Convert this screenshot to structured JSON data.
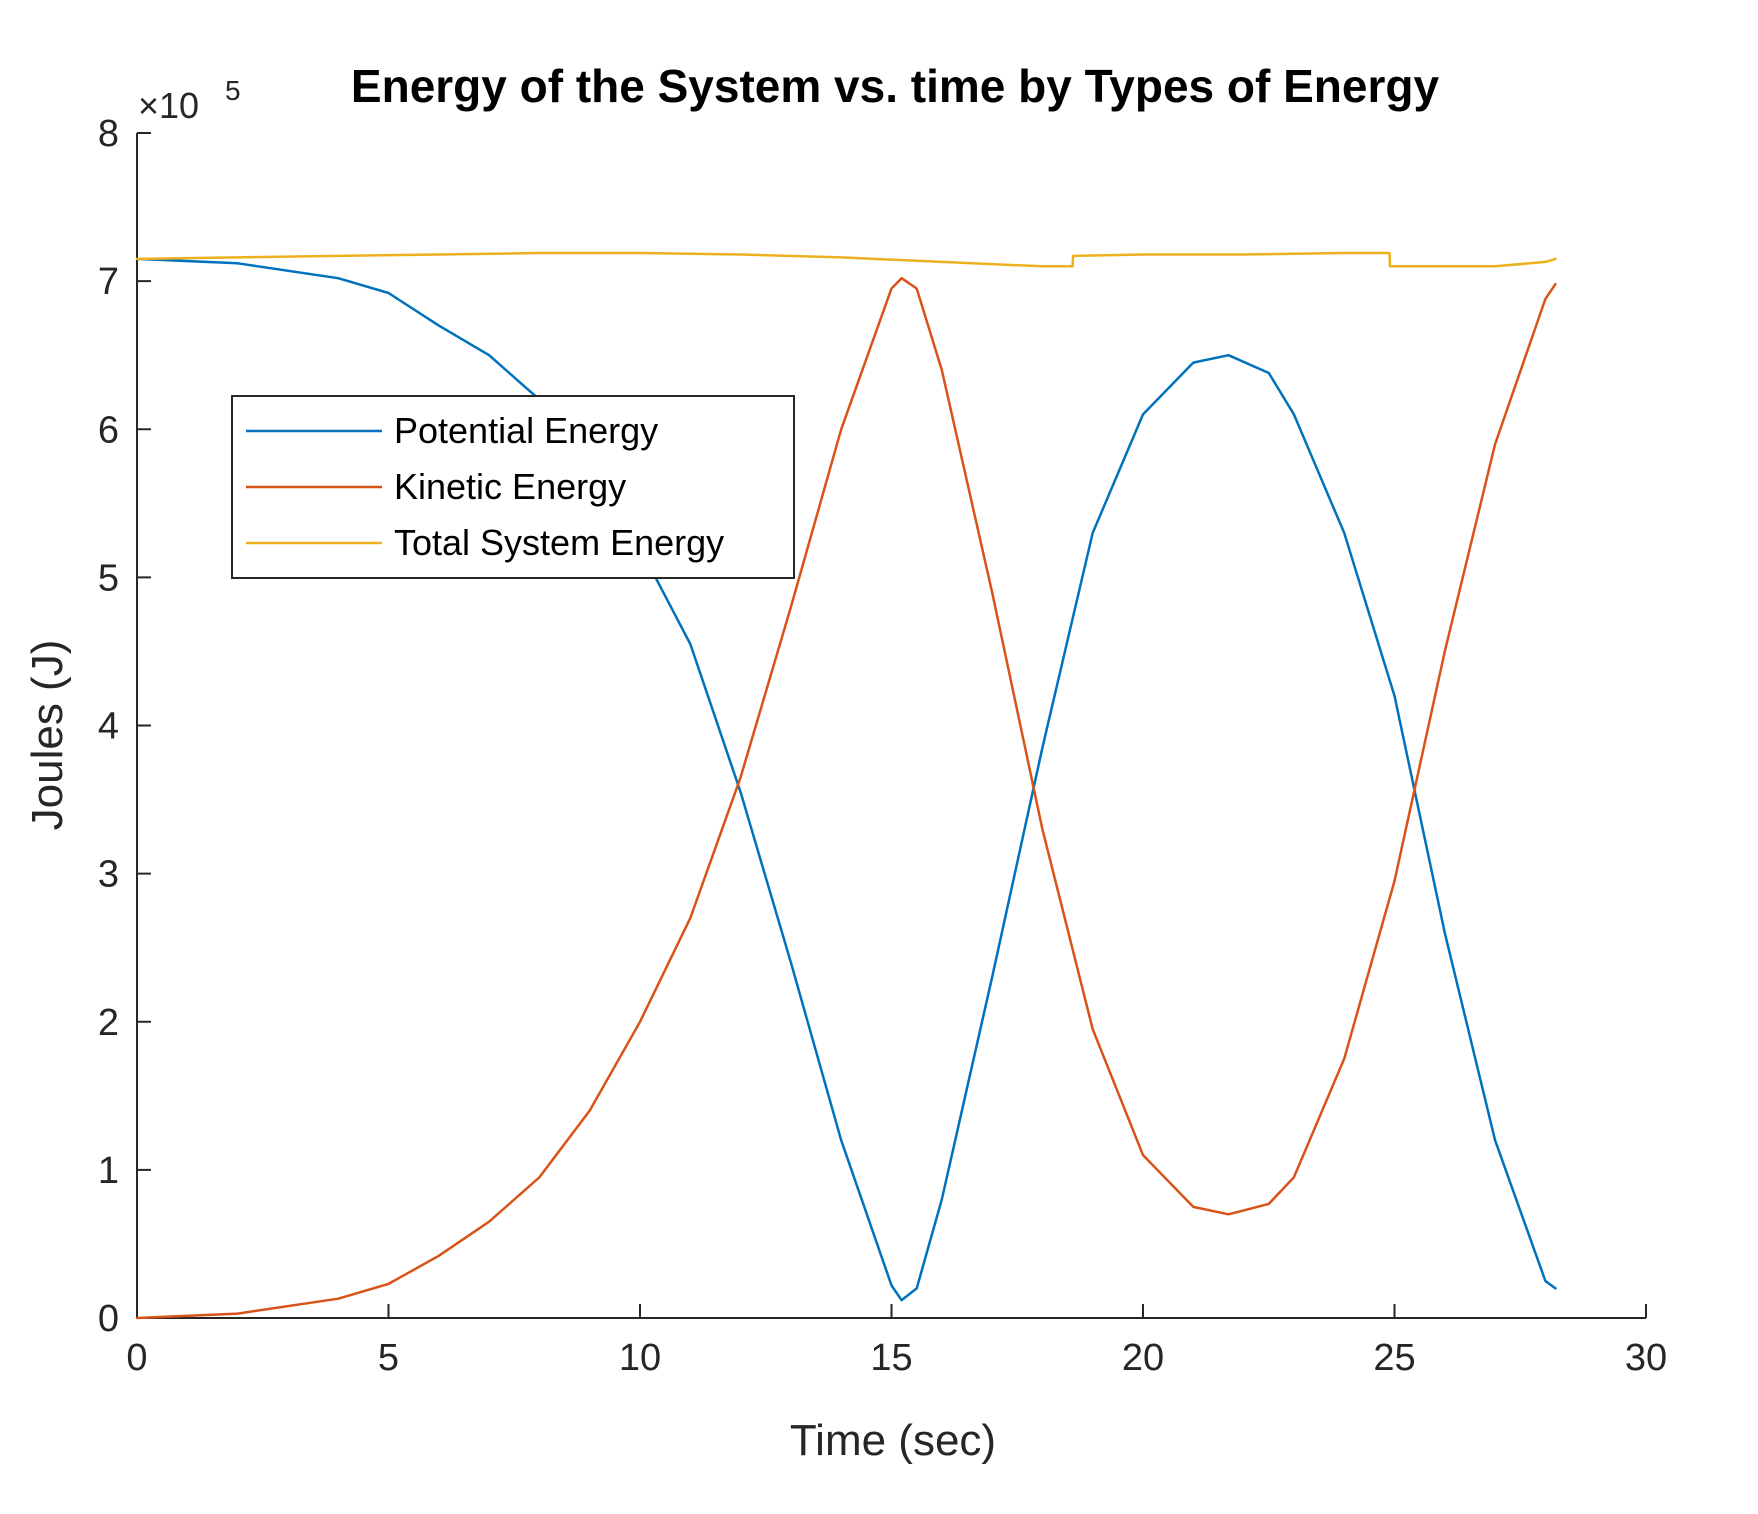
{
  "chart_data": {
    "type": "line",
    "title": "Energy of the System vs. time by Types of Energy",
    "xlabel": "Time (sec)",
    "ylabel": "Joules (J)",
    "xlim": [
      0,
      30
    ],
    "ylim": [
      0,
      8
    ],
    "y_multiplier_label": "×10",
    "y_multiplier_exponent": "5",
    "xticks": [
      0,
      5,
      10,
      15,
      20,
      25,
      30
    ],
    "yticks": [
      0,
      1,
      2,
      3,
      4,
      5,
      6,
      7,
      8
    ],
    "grid": false,
    "legend_position": "upper-left",
    "series": [
      {
        "name": "Potential Energy",
        "color": "#0072BD",
        "x": [
          0,
          2,
          4,
          5,
          6,
          7,
          8,
          9,
          10,
          11,
          12,
          13,
          14,
          15,
          15.2,
          15.5,
          16,
          17,
          18,
          19,
          20,
          21,
          21.7,
          22.5,
          23,
          24,
          25,
          26,
          27,
          28,
          28.2
        ],
        "y": [
          7.15,
          7.12,
          7.02,
          6.92,
          6.7,
          6.5,
          6.2,
          5.8,
          5.2,
          4.55,
          3.55,
          2.4,
          1.2,
          0.22,
          0.12,
          0.2,
          0.8,
          2.3,
          3.85,
          5.3,
          6.1,
          6.45,
          6.5,
          6.38,
          6.1,
          5.3,
          4.2,
          2.6,
          1.2,
          0.25,
          0.2
        ]
      },
      {
        "name": "Kinetic Energy",
        "color": "#D95319",
        "x": [
          0,
          2,
          4,
          5,
          6,
          7,
          8,
          9,
          10,
          11,
          12,
          13,
          14,
          15,
          15.2,
          15.5,
          16,
          17,
          18,
          19,
          20,
          21,
          21.7,
          22.5,
          23,
          24,
          25,
          26,
          27,
          28,
          28.2
        ],
        "y": [
          0,
          0.03,
          0.13,
          0.23,
          0.42,
          0.65,
          0.95,
          1.4,
          2.0,
          2.7,
          3.65,
          4.8,
          6.0,
          6.95,
          7.02,
          6.95,
          6.4,
          4.9,
          3.3,
          1.95,
          1.1,
          0.75,
          0.7,
          0.77,
          0.95,
          1.75,
          2.95,
          4.5,
          5.9,
          6.88,
          6.98
        ]
      },
      {
        "name": "Total System Energy",
        "color": "#EDB120",
        "x": [
          0,
          2,
          4,
          6,
          8,
          10,
          12,
          14,
          16,
          18,
          18.6,
          18.61,
          20,
          22,
          24,
          24.9,
          24.91,
          26,
          27,
          28,
          28.2
        ],
        "y": [
          7.15,
          7.16,
          7.17,
          7.18,
          7.19,
          7.19,
          7.18,
          7.16,
          7.13,
          7.1,
          7.1,
          7.17,
          7.18,
          7.18,
          7.19,
          7.19,
          7.1,
          7.1,
          7.1,
          7.13,
          7.15
        ]
      }
    ]
  }
}
